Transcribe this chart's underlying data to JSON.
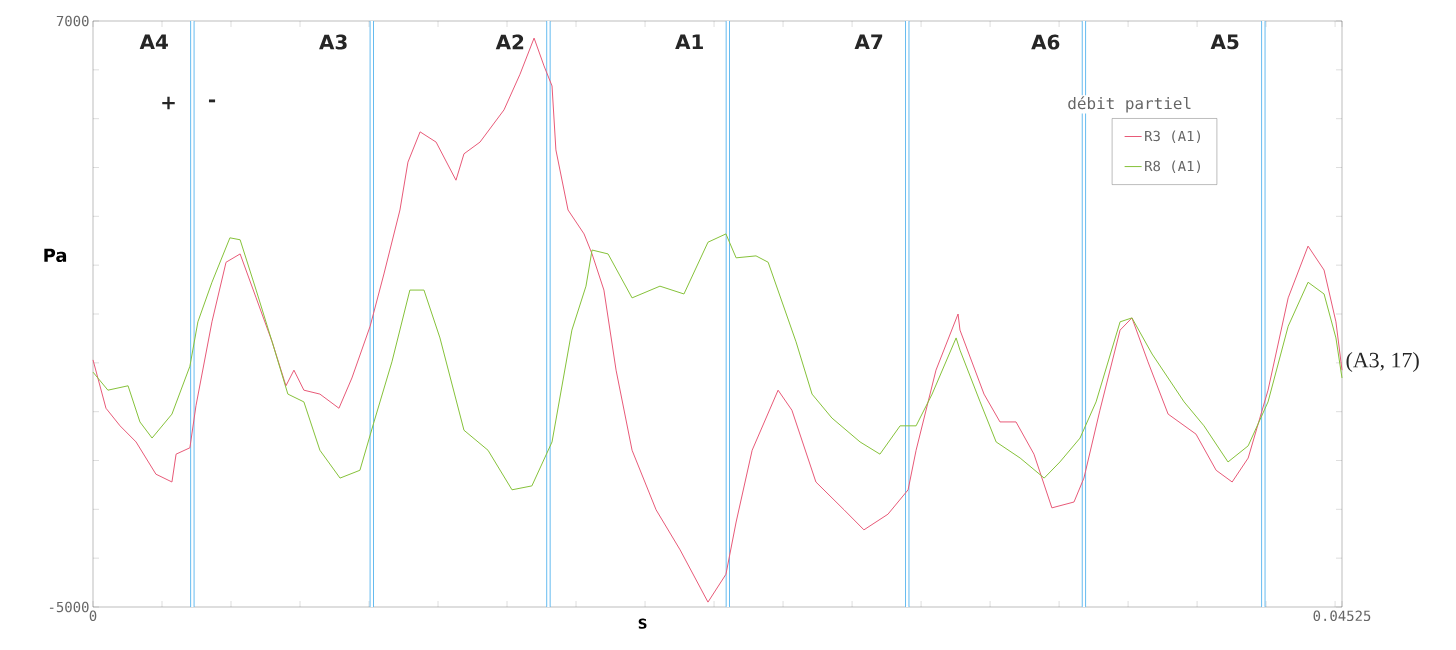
{
  "chart_data": {
    "type": "line",
    "xlabel": "s",
    "ylabel": "Pa",
    "legend_title": "débit partiel",
    "legend": "top right",
    "grid": false,
    "line_style": "solid",
    "xlim": [
      0,
      0.04525
    ],
    "ylim": [
      -5000,
      7000
    ],
    "xticks": [
      0,
      {
        "value": 0.0025,
        "label": null
      },
      {
        "value": 0.005,
        "label": null
      },
      {
        "value": 0.0075,
        "label": null
      },
      {
        "value": 0.01,
        "label": null
      },
      {
        "value": 0.0125,
        "label": null
      },
      {
        "value": 0.015,
        "label": null
      },
      {
        "value": 0.0175,
        "label": null
      },
      {
        "value": 0.02,
        "label": null
      },
      {
        "value": 0.0225,
        "label": null
      },
      {
        "value": 0.025,
        "label": null
      },
      {
        "value": 0.0275,
        "label": null
      },
      {
        "value": 0.03,
        "label": null
      },
      {
        "value": 0.0325,
        "label": null
      },
      {
        "value": 0.035,
        "label": null
      },
      {
        "value": 0.0375,
        "label": null
      },
      {
        "value": 0.04,
        "label": null
      },
      {
        "value": 0.0425,
        "label": null
      },
      {
        "value": 0.045,
        "label": null
      },
      {
        "value": 0.04525,
        "label": "0.04525"
      }
    ],
    "yticks": [
      -5000,
      {
        "value": -4000,
        "label": null
      },
      {
        "value": -3000,
        "label": null
      },
      {
        "value": -2000,
        "label": null
      },
      {
        "value": -1000,
        "label": null
      },
      {
        "value": 0,
        "label": null
      },
      {
        "value": 1000,
        "label": null
      },
      {
        "value": 2000,
        "label": null
      },
      {
        "value": 3000,
        "label": null
      },
      {
        "value": 4000,
        "label": null
      },
      {
        "value": 5000,
        "label": null
      },
      {
        "value": 6000,
        "label": null
      },
      7000
    ],
    "ref_lines": [
      {
        "axis": "x",
        "value": 0.0036,
        "color": "#55b4ee"
      },
      {
        "axis": "x",
        "value": 0.0101,
        "color": "#55b4ee"
      },
      {
        "axis": "x",
        "value": 0.0165,
        "color": "#55b4ee"
      },
      {
        "axis": "x",
        "value": 0.023,
        "color": "#55b4ee"
      },
      {
        "axis": "x",
        "value": 0.0295,
        "color": "#55b4ee"
      },
      {
        "axis": "x",
        "value": 0.0359,
        "color": "#55b4ee"
      },
      {
        "axis": "x",
        "value": 0.0424,
        "color": "#55b4ee"
      }
    ],
    "annotations": [
      "A4",
      "A3",
      "A2",
      "A1",
      "A7",
      "A6",
      "A5",
      "+",
      "-",
      {
        "text": "(A3, 17)",
        "x": 0.04525,
        "y": 17
      }
    ],
    "series": [
      {
        "name": "R3 (A1)",
        "color": "#e85a78",
        "x": [
          0,
          0.00047,
          0.00098,
          0.00156,
          0.00228,
          0.00286,
          0.00301,
          0.00351,
          0.00373,
          0.00431,
          0.00482,
          0.00533,
          0.00591,
          0.00649,
          0.00699,
          0.00728,
          0.00764,
          0.00822,
          0.00891,
          0.00938,
          0.01004,
          0.01054,
          0.01112,
          0.01141,
          0.01185,
          0.01243,
          0.01315,
          0.01344,
          0.01402,
          0.01489,
          0.01547,
          0.01598,
          0.01634,
          0.01663,
          0.01677,
          0.01721,
          0.01779,
          0.01808,
          0.01851,
          0.01895,
          0.01953,
          0.0204,
          0.02127,
          0.02228,
          0.02293,
          0.0233,
          0.02388,
          0.02482,
          0.02532,
          0.02619,
          0.02721,
          0.02793,
          0.0288,
          0.02953,
          0.02982,
          0.03054,
          0.03134,
          0.03141,
          0.03228,
          0.03286,
          0.03344,
          0.03409,
          0.03474,
          0.03554,
          0.0359,
          0.03648,
          0.03721,
          0.03764,
          0.03822,
          0.03895,
          0.03996,
          0.04069,
          0.04127,
          0.04185,
          0.04257,
          0.0433,
          0.04402,
          0.0446,
          0.04503,
          0.04525
        ],
        "values": [
          60,
          -930,
          -1290,
          -1620,
          -2280,
          -2440,
          -1870,
          -1740,
          -880,
          840,
          2060,
          2230,
          1330,
          430,
          -470,
          -150,
          -560,
          -640,
          -930,
          -310,
          750,
          1820,
          3130,
          4110,
          4730,
          4520,
          3740,
          4280,
          4520,
          5180,
          5910,
          6650,
          6080,
          5670,
          4360,
          3130,
          2640,
          2230,
          1490,
          -150,
          -1790,
          -3010,
          -3830,
          -4900,
          -4330,
          -3260,
          -1790,
          -560,
          -970,
          -2440,
          -3010,
          -3420,
          -3100,
          -2600,
          -1790,
          -150,
          1000,
          670,
          -640,
          -1210,
          -1210,
          -1870,
          -2970,
          -2850,
          -2360,
          -970,
          670,
          920,
          20,
          -1050,
          -1460,
          -2200,
          -2440,
          -1950,
          -560,
          1330,
          2390,
          1900,
          840,
          -150
        ]
      },
      {
        "name": "R8 (A1)",
        "color": "#86c23a",
        "x": [
          0,
          0.00054,
          0.00127,
          0.0017,
          0.00214,
          0.00286,
          0.00351,
          0.0038,
          0.00431,
          0.00496,
          0.00533,
          0.00591,
          0.00649,
          0.00706,
          0.00764,
          0.00822,
          0.00895,
          0.00967,
          0.01018,
          0.01083,
          0.01148,
          0.01199,
          0.01257,
          0.01344,
          0.01431,
          0.01518,
          0.0159,
          0.01663,
          0.01735,
          0.01786,
          0.01808,
          0.01866,
          0.01953,
          0.02054,
          0.02141,
          0.02228,
          0.02293,
          0.0233,
          0.02402,
          0.02446,
          0.02547,
          0.02605,
          0.02677,
          0.02779,
          0.02851,
          0.02924,
          0.02982,
          0.0304,
          0.03127,
          0.03141,
          0.03214,
          0.03272,
          0.03359,
          0.03446,
          0.03503,
          0.03576,
          0.03634,
          0.03721,
          0.03764,
          0.03837,
          0.03953,
          0.04025,
          0.04112,
          0.04185,
          0.04257,
          0.0433,
          0.04402,
          0.0446,
          0.04503,
          0.04525
        ],
        "values": [
          -190,
          -560,
          -470,
          -1210,
          -1540,
          -1050,
          -70,
          840,
          1650,
          2560,
          2520,
          1490,
          430,
          -640,
          -800,
          -1790,
          -2360,
          -2200,
          -1210,
          20,
          1490,
          1490,
          510,
          -1380,
          -1790,
          -2600,
          -2520,
          -1620,
          670,
          1570,
          2310,
          2230,
          1330,
          1570,
          1410,
          2470,
          2640,
          2150,
          2190,
          2060,
          430,
          -640,
          -1130,
          -1620,
          -1870,
          -1290,
          -1290,
          -640,
          510,
          260,
          -800,
          -1620,
          -1950,
          -2360,
          -2030,
          -1540,
          -800,
          840,
          920,
          180,
          -800,
          -1290,
          -2030,
          -1700,
          -800,
          750,
          1650,
          1410,
          510,
          -310
        ]
      }
    ]
  }
}
